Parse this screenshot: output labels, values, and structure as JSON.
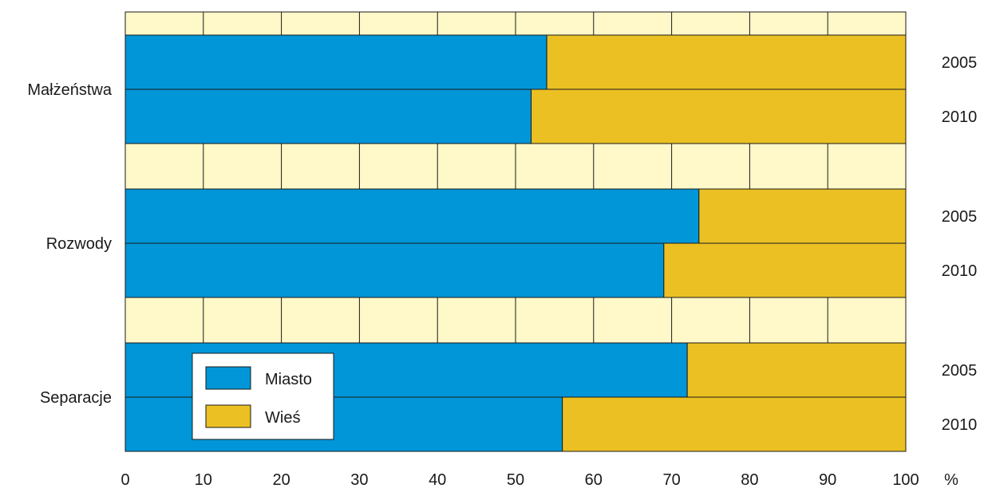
{
  "chart_data": {
    "type": "bar",
    "orientation": "horizontal",
    "stacked": true,
    "percent_stacked": true,
    "title": "",
    "xlabel": "",
    "ylabel": "",
    "unit": "%",
    "xlim": [
      0,
      100
    ],
    "x_ticks": [
      "0",
      "10",
      "20",
      "30",
      "40",
      "50",
      "60",
      "70",
      "80",
      "90",
      "100"
    ],
    "grid": true,
    "legend_placement": "bottom-left",
    "groups": [
      {
        "label": "Małżeństwa",
        "rows": [
          {
            "year": "2005",
            "miasto": 54
          },
          {
            "year": "2010",
            "miasto": 52
          }
        ]
      },
      {
        "label": "Rozwody",
        "rows": [
          {
            "year": "2005",
            "miasto": 73.5
          },
          {
            "year": "2010",
            "miasto": 69
          }
        ]
      },
      {
        "label": "Separacje",
        "rows": [
          {
            "year": "2005",
            "miasto": 72
          },
          {
            "year": "2010",
            "miasto": 56
          }
        ]
      }
    ],
    "series": [
      {
        "name": "Miasto",
        "color": "#0096d8"
      },
      {
        "name": "Wieś",
        "color": "#ebc022"
      }
    ],
    "background_color": "#fff8c8",
    "grid_color": "#1a1a1a"
  }
}
